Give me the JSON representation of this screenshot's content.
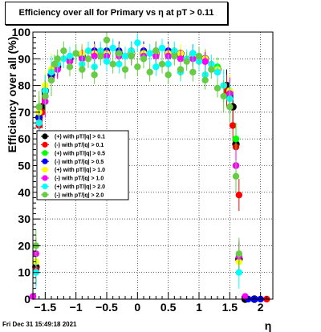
{
  "chart_data": {
    "type": "scatter",
    "title": "Efficiency over all for Primary vs    η at pT > 0.11",
    "xlabel": "η",
    "ylabel": "Efficiency over all (%)",
    "xlim": [
      -1.7,
      2.2
    ],
    "ylim": [
      0,
      100
    ],
    "x_ticks": [
      -1.5,
      -1,
      -0.5,
      0,
      0.5,
      1,
      1.5,
      2
    ],
    "x_tick_labels": [
      "−1.5",
      "−1",
      "−0.5",
      "0",
      "0.5",
      "1",
      "1.5",
      "2"
    ],
    "y_ticks": [
      0,
      10,
      20,
      30,
      40,
      50,
      60,
      70,
      80,
      90,
      100
    ],
    "grid": true,
    "legend_position": "middle-left",
    "series": [
      {
        "name": "(+) with pT/|q| > 0.1",
        "color": "#000000",
        "x": [
          -1.65,
          -1.6,
          -1.55,
          -1.5,
          -1.4,
          -1.3,
          -1.1,
          -0.9,
          -0.7,
          -0.5,
          -0.3,
          -0.1,
          0.1,
          0.3,
          0.5,
          0.7,
          0.9,
          1.1,
          1.3,
          1.45,
          1.55,
          1.6,
          1.65,
          1.75,
          1.9
        ],
        "y": [
          12,
          68,
          72,
          78,
          84,
          87,
          90,
          91,
          92,
          92,
          92,
          92,
          92,
          92,
          92,
          92,
          91,
          90,
          86,
          80,
          72,
          58,
          15,
          0,
          0
        ]
      },
      {
        "name": "(-) with pT/|q| > 0.1",
        "color": "#ff0000",
        "x": [
          -1.65,
          -1.6,
          -1.55,
          -1.5,
          -1.4,
          -1.3,
          -1.1,
          -0.9,
          -0.7,
          -0.5,
          -0.3,
          -0.1,
          0.1,
          0.3,
          0.5,
          0.7,
          0.9,
          1.1,
          1.3,
          1.45,
          1.55,
          1.6,
          1.65,
          2.1
        ],
        "y": [
          11,
          65,
          70,
          76,
          83,
          86,
          89,
          91,
          92,
          92,
          92,
          92,
          92,
          92,
          92,
          91,
          91,
          89,
          85,
          78,
          65,
          57,
          39,
          0
        ]
      },
      {
        "name": "(+) with pT/|q| > 0.5",
        "color": "#00ff00",
        "x": [
          -1.6,
          -1.5,
          -1.4,
          -1.3,
          -1.1,
          -0.9,
          -0.7,
          -0.5,
          -0.3,
          -0.1,
          0.1,
          0.3,
          0.5,
          0.7,
          0.9,
          1.1,
          1.3,
          1.5,
          1.6
        ],
        "y": [
          70,
          78,
          85,
          88,
          90,
          91,
          92,
          92,
          92,
          92,
          92,
          92,
          92,
          92,
          91,
          90,
          87,
          78,
          60
        ]
      },
      {
        "name": "(-) with pT/|q| > 0.5",
        "color": "#0000ff",
        "x": [
          -1.6,
          -1.5,
          -1.4,
          -1.3,
          -1.1,
          -0.9,
          -0.7,
          -0.5,
          -0.3,
          -0.1,
          0.1,
          0.3,
          0.5,
          0.7,
          0.9,
          1.1,
          1.3,
          1.5,
          1.6,
          1.8,
          1.9,
          2.0
        ],
        "y": [
          68,
          76,
          84,
          88,
          90,
          92,
          93,
          93,
          93,
          93,
          93,
          93,
          93,
          92,
          92,
          90,
          86,
          76,
          50,
          0,
          0,
          0
        ]
      },
      {
        "name": "(+) with pT/|q| > 1.0",
        "color": "#ffff00",
        "x": [
          -1.65,
          -1.6,
          -1.5,
          -1.4,
          -1.3,
          -1.1,
          -0.9,
          -0.7,
          -0.5,
          -0.3,
          -0.1,
          0.1,
          0.3,
          0.5,
          0.7,
          0.9,
          1.1,
          1.3,
          1.5,
          1.65
        ],
        "y": [
          14,
          70,
          80,
          86,
          89,
          91,
          92,
          92,
          92,
          92,
          92,
          92,
          92,
          92,
          92,
          91,
          90,
          86,
          78,
          14
        ]
      },
      {
        "name": "(-) with pT/|q| > 1.0",
        "color": "#ff00ff",
        "x": [
          -1.7,
          -1.65,
          -1.6,
          -1.5,
          -1.4,
          -1.3,
          -1.1,
          -0.9,
          -0.7,
          -0.5,
          -0.3,
          -0.1,
          0.1,
          0.3,
          0.5,
          0.7,
          0.9,
          1.1,
          1.3,
          1.5,
          1.6,
          1.65,
          1.75
        ],
        "y": [
          1,
          17,
          66,
          74,
          82,
          86,
          89,
          90,
          91,
          91,
          91,
          91,
          91,
          91,
          91,
          90,
          90,
          89,
          85,
          77,
          50,
          16,
          1
        ]
      },
      {
        "name": "(+) with pT/|q| > 2.0",
        "color": "#00ffff",
        "x": [
          -1.65,
          -1.6,
          -1.5,
          -1.4,
          -1.3,
          -1.2,
          -1.1,
          -1.0,
          -0.9,
          -0.8,
          -0.7,
          -0.6,
          -0.5,
          -0.4,
          -0.3,
          -0.2,
          -0.1,
          0.0,
          0.1,
          0.2,
          0.3,
          0.4,
          0.5,
          0.6,
          0.7,
          0.8,
          0.9,
          1.0,
          1.1,
          1.2,
          1.3,
          1.4,
          1.5,
          1.65
        ],
        "y": [
          10,
          66,
          78,
          85,
          88,
          90,
          91,
          92,
          88,
          93,
          87,
          93,
          89,
          94,
          88,
          91,
          93,
          96,
          90,
          92,
          87,
          94,
          88,
          93,
          85,
          90,
          92,
          89,
          84,
          88,
          85,
          80,
          75,
          10
        ]
      },
      {
        "name": "(-) with pT/|q| > 2.0",
        "color": "#66cc44",
        "x": [
          -1.65,
          -1.6,
          -1.5,
          -1.4,
          -1.35,
          -1.3,
          -1.2,
          -1.1,
          -1.0,
          -0.9,
          -0.8,
          -0.7,
          -0.6,
          -0.5,
          -0.4,
          -0.3,
          -0.2,
          -0.1,
          0.0,
          0.1,
          0.2,
          0.3,
          0.4,
          0.5,
          0.6,
          0.7,
          0.8,
          0.9,
          1.0,
          1.1,
          1.2,
          1.3,
          1.4,
          1.5,
          1.6,
          1.65
        ],
        "y": [
          20,
          72,
          76,
          82,
          88,
          90,
          93,
          87,
          92,
          86,
          90,
          84,
          91,
          97,
          88,
          92,
          86,
          91,
          87,
          90,
          85,
          93,
          88,
          84,
          91,
          86,
          89,
          85,
          91,
          82,
          86,
          79,
          76,
          72,
          46,
          17
        ]
      }
    ]
  },
  "timestamp": "Fri Dec 31 15:49:18 2021"
}
